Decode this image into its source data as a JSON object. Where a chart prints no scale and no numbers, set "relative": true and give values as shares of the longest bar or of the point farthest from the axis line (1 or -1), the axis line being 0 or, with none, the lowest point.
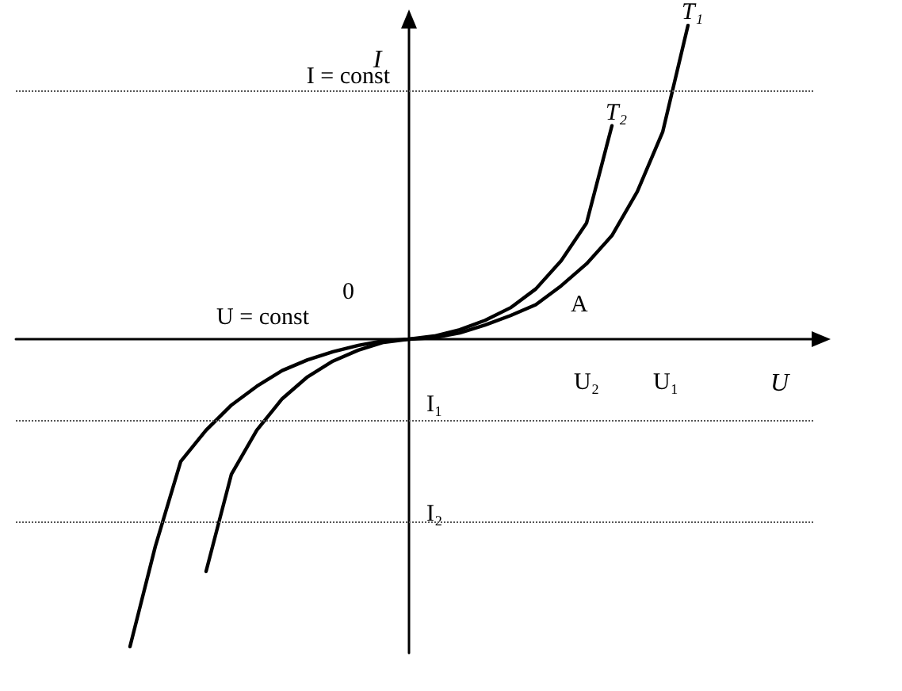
{
  "chart_data": {
    "type": "line",
    "relative": true,
    "xlabel": "U",
    "ylabel": "I",
    "categories": [
      null,
      null,
      null,
      null,
      null,
      null,
      null,
      null,
      null,
      null,
      null,
      null,
      null,
      null,
      null,
      null,
      null,
      null,
      null,
      null,
      null,
      null,
      null
    ],
    "series": [
      {
        "name": "T₂",
        "color": "#000000",
        "values": [
          -0.98,
          -0.66,
          -0.39,
          -0.29,
          -0.21,
          -0.15,
          -0.1,
          -0.066,
          -0.04,
          -0.02,
          -0.005,
          0,
          0.01,
          0.03,
          0.06,
          0.1,
          0.16,
          0.25,
          0.37,
          0.68,
          null,
          null,
          null
        ]
      },
      {
        "name": "T₁",
        "color": "#000000",
        "values": [
          null,
          null,
          null,
          -0.74,
          -0.43,
          -0.29,
          -0.19,
          -0.12,
          -0.07,
          -0.035,
          -0.01,
          0,
          0.005,
          0.02,
          0.045,
          0.075,
          0.11,
          0.17,
          0.24,
          0.33,
          0.47,
          0.66,
          1
        ]
      }
    ],
    "ref_lines": [
      {
        "axis": "y",
        "value": 0.79,
        "line_style": "dotted"
      },
      {
        "axis": "y",
        "value": -0.26,
        "line_style": "dotted"
      },
      {
        "axis": "y",
        "value": -0.58,
        "line_style": "dotted"
      }
    ],
    "annotations": [
      "I = const",
      "U = const",
      "0",
      "A",
      "U₂",
      "U₁",
      "I₁",
      "I₂"
    ],
    "legend": false,
    "marker": "none",
    "line_style": "solid",
    "grid": false
  }
}
